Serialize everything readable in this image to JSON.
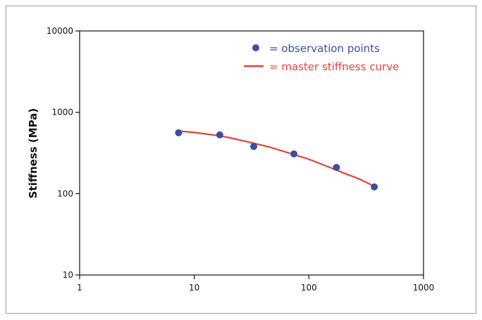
{
  "colors": {
    "points": "#3b4fa0",
    "curve": "#e8403a",
    "axis": "#111111"
  },
  "chart_data": {
    "type": "scatter",
    "title": "",
    "xlabel": "",
    "ylabel": "Stiffness (MPa)",
    "xscale": "log",
    "yscale": "log",
    "xlim": [
      1,
      1000
    ],
    "ylim": [
      10,
      10000
    ],
    "xticks": [
      "1",
      "10",
      "100",
      "1000"
    ],
    "yticks": [
      "10",
      "100",
      "1000",
      "10000"
    ],
    "xtick_values": [
      1,
      10,
      100,
      1000
    ],
    "ytick_values": [
      10,
      100,
      1000,
      10000
    ],
    "grid": false,
    "legend_position": "top-right",
    "series": [
      {
        "name": "= observation points",
        "kind": "points",
        "x": [
          7.3,
          16.7,
          33.0,
          74.0,
          174.0,
          372.0
        ],
        "y": [
          560,
          528,
          380,
          308,
          210,
          121
        ]
      },
      {
        "name": "= master stiffness curve",
        "kind": "line",
        "x": [
          7.3,
          10,
          15,
          20,
          30,
          45,
          70,
          100,
          150,
          200,
          280,
          372
        ],
        "y": [
          590,
          565,
          525,
          490,
          430,
          375,
          310,
          265,
          212,
          180,
          150,
          123
        ]
      }
    ]
  }
}
